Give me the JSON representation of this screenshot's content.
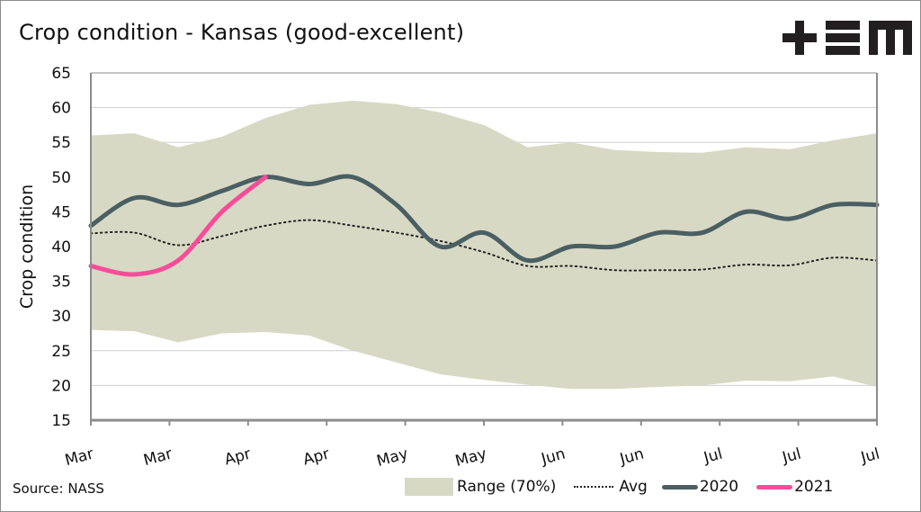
{
  "header": {
    "title": "Crop condition - Kansas (good-excellent)",
    "logo_text": "+EM"
  },
  "footer": {
    "source": "Source: NASS"
  },
  "legend": {
    "range": "Range (70%)",
    "avg": "Avg",
    "y2020": "2020",
    "y2021": "2021"
  },
  "colors": {
    "range": "#d8d9c4",
    "avg": "#222222",
    "y2020": "#4a5f63",
    "y2021": "#f84c9a",
    "grid": "#cfcfcf",
    "axis": "#8c8c8c"
  },
  "chart_data": {
    "type": "line",
    "title": "Crop condition - Kansas (good-excellent)",
    "xlabel": "",
    "ylabel": "Crop condition",
    "ylim": [
      15,
      65
    ],
    "yticks": [
      15,
      20,
      25,
      30,
      35,
      40,
      45,
      50,
      55,
      60,
      65
    ],
    "xtick_labels": [
      "Mar",
      "Mar",
      "Apr",
      "Apr",
      "May",
      "May",
      "Jun",
      "Jun",
      "Jul",
      "Jul"
    ],
    "x_points": 19,
    "grid": "horizontal",
    "legend_position": "bottom-right",
    "series": [
      {
        "name": "Range (70%)",
        "kind": "band",
        "upper": [
          56,
          56.3,
          54.3,
          55.8,
          58.5,
          60.4,
          61,
          60.5,
          59.3,
          57.5,
          54.3,
          55,
          53.9,
          53.6,
          53.5,
          54.3,
          54,
          55.3,
          56.3
        ],
        "lower": [
          28,
          27.8,
          26.2,
          27.5,
          27.7,
          27.2,
          25,
          23.3,
          21.6,
          20.8,
          20.1,
          19.5,
          19.5,
          19.8,
          20,
          20.7,
          20.6,
          21.3,
          19.8
        ]
      },
      {
        "name": "Avg",
        "kind": "dotted",
        "values": [
          41.9,
          42,
          40.2,
          41.5,
          43,
          43.8,
          43,
          42,
          40.8,
          39.2,
          37.2,
          37.2,
          36.6,
          36.6,
          36.7,
          37.4,
          37.3,
          38.4,
          38
        ]
      },
      {
        "name": "2020",
        "kind": "line",
        "values": [
          43,
          47,
          46,
          48,
          50,
          49,
          50,
          46,
          40,
          42,
          38,
          40,
          40,
          42,
          42,
          45,
          44,
          46,
          46
        ]
      },
      {
        "name": "2021",
        "kind": "line",
        "values": [
          37.2,
          36,
          38,
          45,
          50
        ]
      }
    ]
  }
}
